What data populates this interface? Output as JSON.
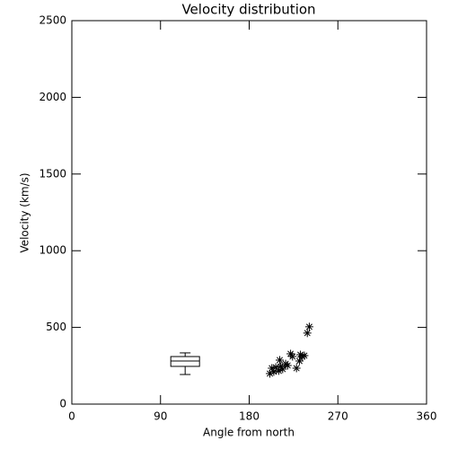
{
  "chart_data": {
    "type": "scatter",
    "title": "Velocity distribution",
    "x_label": "Angle from north",
    "y_label": "Velocity (km/s)",
    "xlim": [
      0,
      360
    ],
    "xticks": [
      0,
      90,
      180,
      270,
      360
    ],
    "ylim": [
      0,
      2500
    ],
    "yticks": [
      0,
      500,
      1000,
      1500,
      2000,
      2500
    ],
    "color": "#000000",
    "marker": "asterisk",
    "x": [
      201,
      203,
      205,
      207,
      210,
      211,
      212,
      214,
      217,
      219,
      222,
      224,
      228,
      231,
      232,
      234,
      236,
      239,
      241
    ],
    "values": [
      199,
      234,
      211,
      240,
      217,
      287,
      246,
      228,
      263,
      252,
      328,
      310,
      234,
      281,
      322,
      310,
      316,
      463,
      504
    ],
    "box": {
      "x": 115,
      "whisker_low": 193,
      "q1": 246,
      "median": 281,
      "q3": 310,
      "whisker_high": 334
    }
  }
}
